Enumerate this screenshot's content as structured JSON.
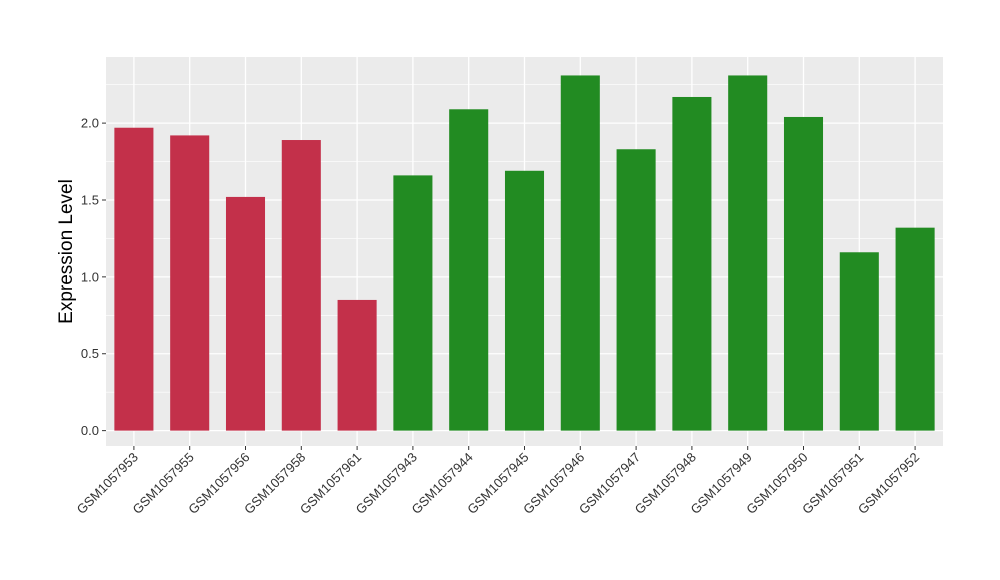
{
  "chart_data": {
    "type": "bar",
    "title": "",
    "xlabel": "",
    "ylabel": "Expression Level",
    "ylim": [
      -0.1,
      2.43
    ],
    "y_ticks": [
      "0.0",
      "0.5",
      "1.0",
      "1.5",
      "2.0"
    ],
    "y_tick_values": [
      0,
      0.5,
      1.0,
      1.5,
      2.0
    ],
    "grid": true,
    "legend": "none",
    "categories": [
      "GSM1057953",
      "GSM1057955",
      "GSM1057956",
      "GSM1057958",
      "GSM1057961",
      "GSM1057943",
      "GSM1057944",
      "GSM1057945",
      "GSM1057946",
      "GSM1057947",
      "GSM1057948",
      "GSM1057949",
      "GSM1057950",
      "GSM1057951",
      "GSM1057952"
    ],
    "values": [
      1.97,
      1.92,
      1.52,
      1.89,
      0.85,
      1.66,
      2.09,
      1.69,
      2.31,
      1.83,
      2.17,
      2.31,
      2.04,
      1.16,
      1.32
    ],
    "bar_colors": [
      "#c3304a",
      "#c3304a",
      "#c3304a",
      "#c3304a",
      "#c3304a",
      "#228b22",
      "#228b22",
      "#228b22",
      "#228b22",
      "#228b22",
      "#228b22",
      "#228b22",
      "#228b22",
      "#228b22",
      "#228b22"
    ],
    "panel_color": "#ebebeb",
    "grid_color": "#ffffff"
  }
}
